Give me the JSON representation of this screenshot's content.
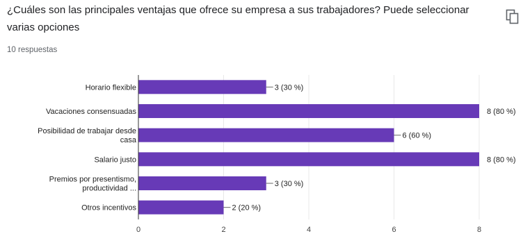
{
  "question": {
    "title": "¿Cuáles son las principales ventajas que ofrece su empresa a sus trabajadores? Puede seleccionar varias opciones",
    "responses": "10 respuestas"
  },
  "icons": {
    "copy": "copy-icon"
  },
  "colors": {
    "bar": "#673ab7",
    "grid": "#e8e8e8",
    "text": "#222222",
    "tick": "#444444"
  },
  "chart_data": {
    "type": "bar",
    "orientation": "horizontal",
    "categories": [
      [
        "Horario flexible"
      ],
      [
        "Vacaciones consensuadas"
      ],
      [
        "Posibilidad de trabajar desde",
        "casa"
      ],
      [
        "Salario justo"
      ],
      [
        "Premios por presentismo,",
        "productividad ..."
      ],
      [
        "Otros incentivos"
      ]
    ],
    "values": [
      3,
      8,
      6,
      8,
      3,
      2
    ],
    "value_labels": [
      "3 (30 %)",
      "8 (80 %)",
      "6 (60 %)",
      "8 (80 %)",
      "3 (30 %)",
      "2 (20 %)"
    ],
    "xlim": [
      0,
      8
    ],
    "xticks": [
      0,
      2,
      4,
      6,
      8
    ],
    "grid": true,
    "title": "",
    "xlabel": "",
    "ylabel": ""
  }
}
